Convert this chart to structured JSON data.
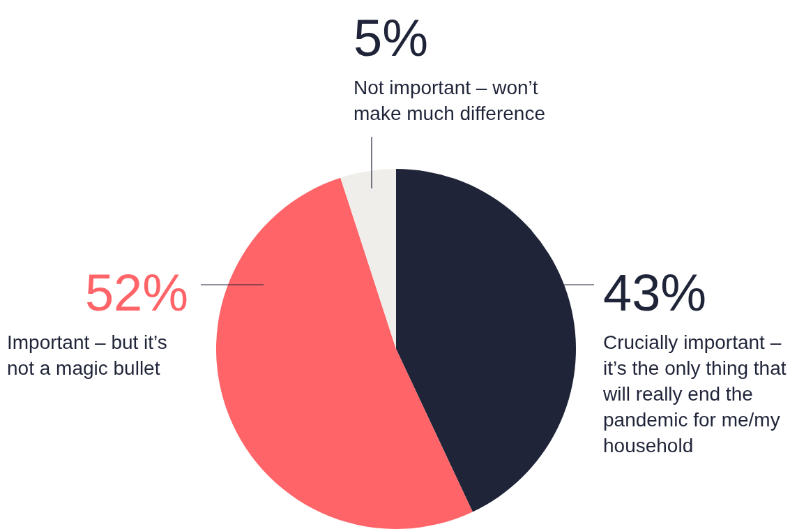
{
  "chart_data": {
    "type": "pie",
    "categories": [
      "Crucially important – it’s the only thing that will really end the pandemic for me/my household",
      "Important – but it’s not a magic bullet",
      "Not important – won’t make much difference"
    ],
    "values": [
      43,
      52,
      5
    ],
    "colors": [
      "#1f2438",
      "#ff6468",
      "#f0eeea"
    ],
    "value_labels": [
      "43%",
      "52%",
      "5%"
    ],
    "legend": false
  }
}
